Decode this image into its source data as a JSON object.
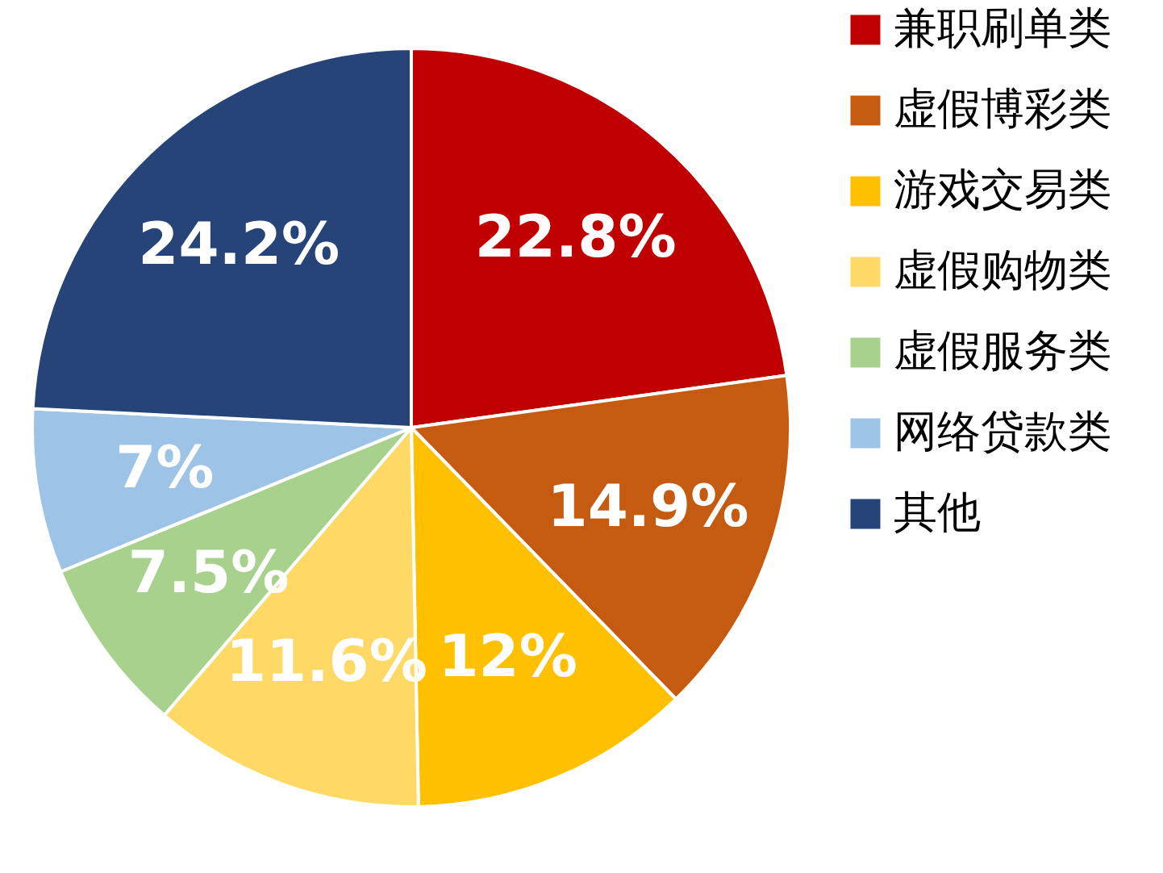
{
  "chart_data": {
    "type": "pie",
    "categories": [
      "兼职刷单类",
      "虚假博彩类",
      "游戏交易类",
      "虚假购物类",
      "虚假服务类",
      "网络贷款类",
      "其他"
    ],
    "values": [
      22.8,
      14.9,
      12,
      11.6,
      7.5,
      7,
      24.2
    ],
    "colors": [
      "#c00000",
      "#c55a11",
      "#ffc000",
      "#ffd966",
      "#a9d18e",
      "#9dc3e6",
      "#264478"
    ],
    "value_labels": [
      "22.8%",
      "14.9%",
      "12%",
      "11.6%",
      "7.5%",
      "7%",
      "24.2%"
    ],
    "legend": "right"
  }
}
